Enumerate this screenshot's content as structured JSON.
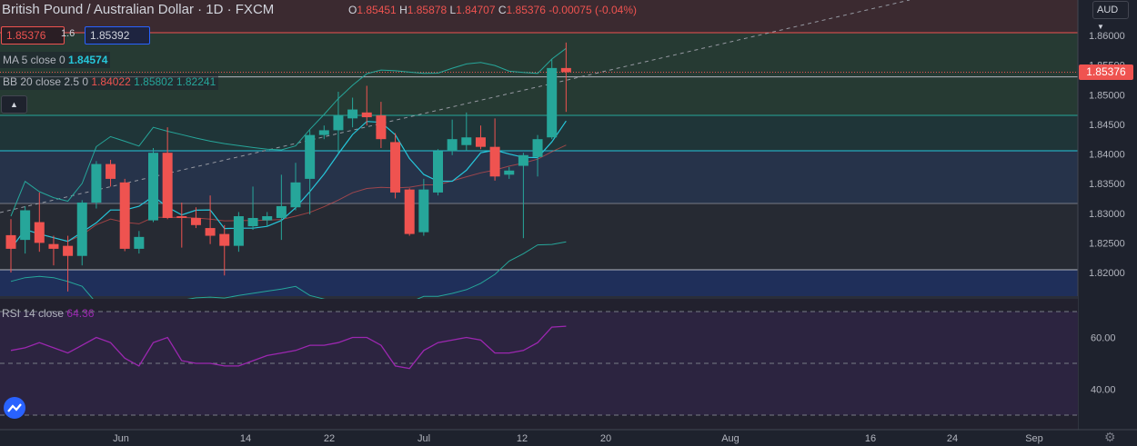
{
  "header": {
    "title": "British Pound / Australian Dollar · 1D · FXCM",
    "open": "1.85451",
    "high": "1.85878",
    "low": "1.84707",
    "close": "1.85376",
    "change": "-0.00075 (-0.04%)",
    "bid": "1.85376",
    "spread": "1.6",
    "ask": "1.85392"
  },
  "indicators": {
    "ma_label": "MA 5 close 0",
    "ma_value": "1.84574",
    "bb_label": "BB 20 close 2.5 0",
    "bb_basis": "1.84022",
    "bb_upper": "1.85802",
    "bb_lower": "1.82241",
    "rsi_label": "RSI 14 close",
    "rsi_value": "64.36"
  },
  "currency_selector": "AUD",
  "last_price_tag": "1.85376",
  "colors": {
    "up": "#26a69a",
    "down": "#ef5350",
    "ma": "#26c6da",
    "bb_basis": "#ef5350",
    "bb_band": "#26a69a",
    "rsi": "#9c27b0"
  },
  "chart_data": {
    "type": "candlestick",
    "y_ticks": [
      "1.86000",
      "1.85500",
      "1.85000",
      "1.84500",
      "1.84000",
      "1.83500",
      "1.83000",
      "1.82500",
      "1.82000"
    ],
    "x_ticks": [
      "Jun",
      "14",
      "22",
      "Jul",
      "12",
      "20",
      "Aug",
      "16",
      "24",
      "Sep"
    ],
    "rsi_ticks": [
      "60.00",
      "40.00"
    ],
    "candles": [
      {
        "o": 1.8263,
        "h": 1.829,
        "l": 1.82,
        "c": 1.824
      },
      {
        "o": 1.8255,
        "h": 1.8312,
        "l": 1.8232,
        "c": 1.8305
      },
      {
        "o": 1.8285,
        "h": 1.8335,
        "l": 1.8235,
        "c": 1.825
      },
      {
        "o": 1.8248,
        "h": 1.8262,
        "l": 1.8212,
        "c": 1.824
      },
      {
        "o": 1.8245,
        "h": 1.8262,
        "l": 1.8168,
        "c": 1.8228
      },
      {
        "o": 1.8228,
        "h": 1.8322,
        "l": 1.8212,
        "c": 1.8318
      },
      {
        "o": 1.8318,
        "h": 1.8388,
        "l": 1.8308,
        "c": 1.8383
      },
      {
        "o": 1.8383,
        "h": 1.839,
        "l": 1.8345,
        "c": 1.8358
      },
      {
        "o": 1.8352,
        "h": 1.8358,
        "l": 1.8236,
        "c": 1.824
      },
      {
        "o": 1.824,
        "h": 1.827,
        "l": 1.8232,
        "c": 1.826
      },
      {
        "o": 1.8288,
        "h": 1.841,
        "l": 1.8285,
        "c": 1.8402
      },
      {
        "o": 1.8402,
        "h": 1.8445,
        "l": 1.829,
        "c": 1.8292
      },
      {
        "o": 1.8295,
        "h": 1.8318,
        "l": 1.8242,
        "c": 1.8292
      },
      {
        "o": 1.8292,
        "h": 1.831,
        "l": 1.8275,
        "c": 1.828
      },
      {
        "o": 1.8275,
        "h": 1.833,
        "l": 1.8248,
        "c": 1.8262
      },
      {
        "o": 1.8265,
        "h": 1.828,
        "l": 1.8195,
        "c": 1.8245
      },
      {
        "o": 1.8245,
        "h": 1.8302,
        "l": 1.8235,
        "c": 1.8295
      },
      {
        "o": 1.8278,
        "h": 1.8345,
        "l": 1.8272,
        "c": 1.8292
      },
      {
        "o": 1.8288,
        "h": 1.8302,
        "l": 1.8278,
        "c": 1.8295
      },
      {
        "o": 1.8292,
        "h": 1.8365,
        "l": 1.8255,
        "c": 1.8312
      },
      {
        "o": 1.831,
        "h": 1.8385,
        "l": 1.8305,
        "c": 1.8352
      },
      {
        "o": 1.8358,
        "h": 1.844,
        "l": 1.8298,
        "c": 1.8432
      },
      {
        "o": 1.8432,
        "h": 1.8448,
        "l": 1.8425,
        "c": 1.844
      },
      {
        "o": 1.844,
        "h": 1.8505,
        "l": 1.8402,
        "c": 1.8465
      },
      {
        "o": 1.846,
        "h": 1.8495,
        "l": 1.8445,
        "c": 1.8475
      },
      {
        "o": 1.847,
        "h": 1.8515,
        "l": 1.8448,
        "c": 1.8462
      },
      {
        "o": 1.8465,
        "h": 1.8488,
        "l": 1.841,
        "c": 1.8425
      },
      {
        "o": 1.842,
        "h": 1.8435,
        "l": 1.8325,
        "c": 1.8335
      },
      {
        "o": 1.834,
        "h": 1.8342,
        "l": 1.8262,
        "c": 1.8265
      },
      {
        "o": 1.8268,
        "h": 1.8358,
        "l": 1.8262,
        "c": 1.834
      },
      {
        "o": 1.8335,
        "h": 1.8408,
        "l": 1.833,
        "c": 1.8405
      },
      {
        "o": 1.8405,
        "h": 1.8458,
        "l": 1.8398,
        "c": 1.8425
      },
      {
        "o": 1.8415,
        "h": 1.847,
        "l": 1.8405,
        "c": 1.8428
      },
      {
        "o": 1.8428,
        "h": 1.8448,
        "l": 1.8408,
        "c": 1.8412
      },
      {
        "o": 1.8412,
        "h": 1.846,
        "l": 1.8355,
        "c": 1.8362
      },
      {
        "o": 1.8365,
        "h": 1.8378,
        "l": 1.8358,
        "c": 1.8372
      },
      {
        "o": 1.838,
        "h": 1.8402,
        "l": 1.8258,
        "c": 1.8398
      },
      {
        "o": 1.8395,
        "h": 1.8432,
        "l": 1.8362,
        "c": 1.8425
      },
      {
        "o": 1.8428,
        "h": 1.856,
        "l": 1.8425,
        "c": 1.8545
      },
      {
        "o": 1.8545,
        "h": 1.8588,
        "l": 1.8471,
        "c": 1.8538
      }
    ],
    "rsi_values": [
      55,
      56,
      58,
      56,
      54,
      57,
      60,
      58,
      52,
      49,
      58,
      60,
      51,
      50,
      50,
      49,
      49,
      51,
      53,
      54,
      55,
      57,
      57,
      58,
      60,
      60,
      57,
      49,
      48,
      55,
      58,
      59,
      60,
      59,
      54,
      54,
      55,
      58,
      64,
      64.36
    ]
  }
}
